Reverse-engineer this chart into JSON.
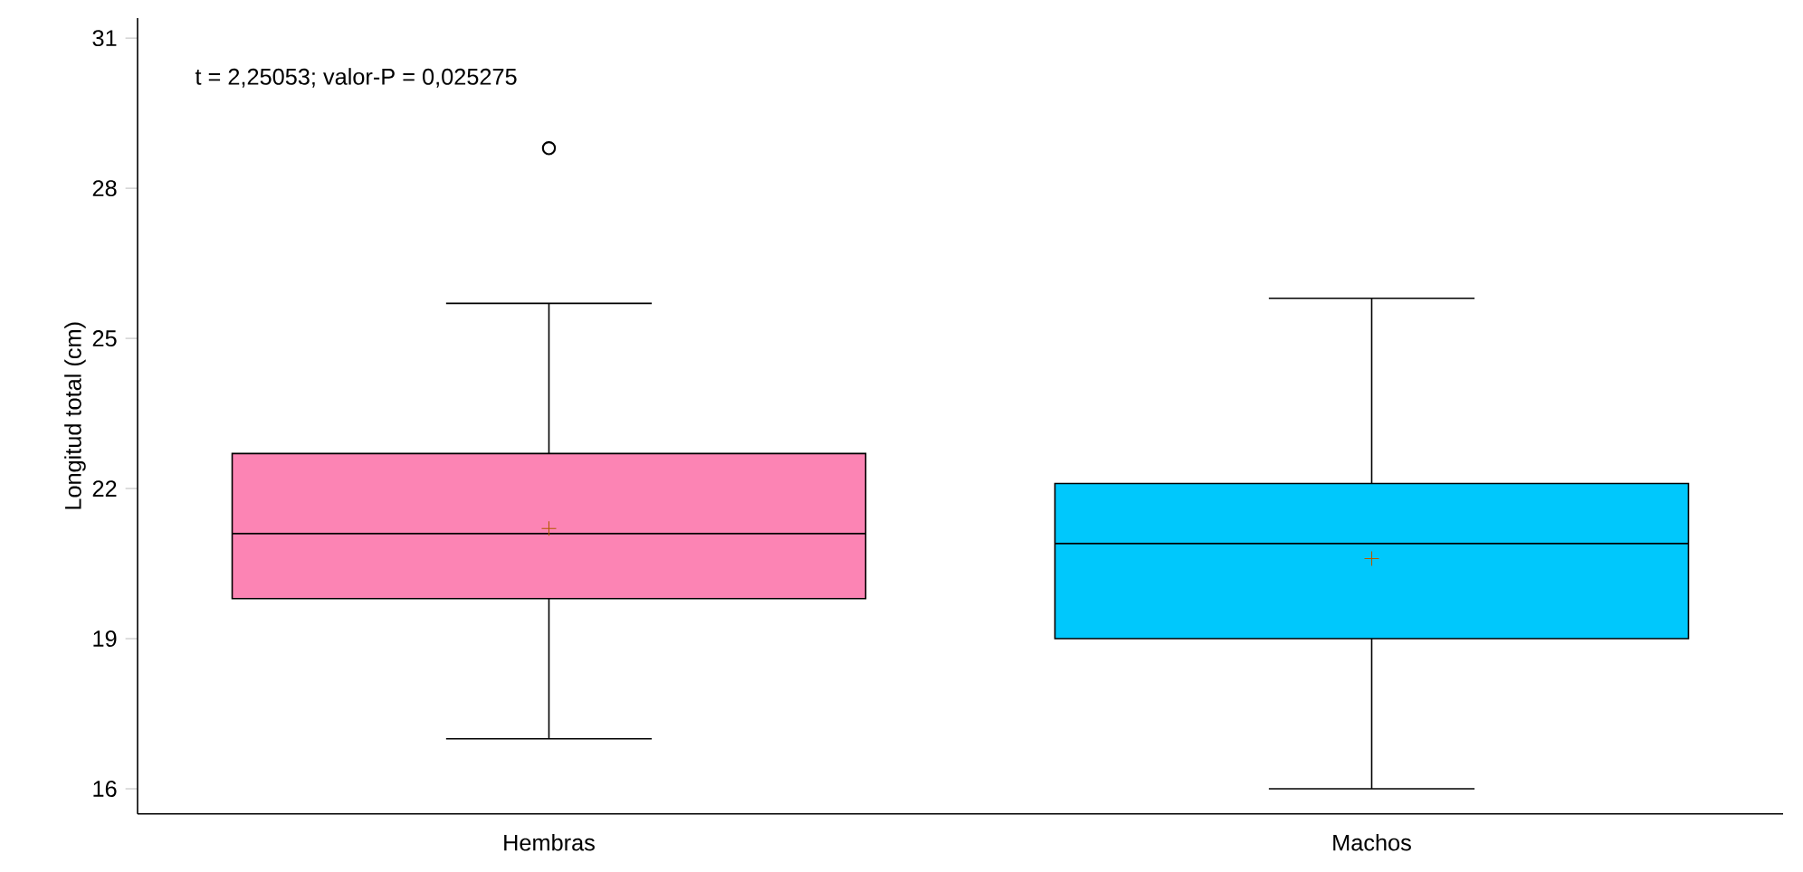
{
  "chart_data": {
    "type": "box",
    "ylabel": "Longitud total (cm)",
    "annotations": [
      "t = 2,25053;  valor-P = 0,025275"
    ],
    "categories": [
      "Hembras",
      "Machos"
    ],
    "colors": [
      "#fc84b4",
      "#00c8fc"
    ],
    "boxes": [
      {
        "low": 17.0,
        "q1": 19.8,
        "median": 21.1,
        "q3": 22.7,
        "high": 25.7,
        "mean": 21.2,
        "outliers": [
          28.8
        ]
      },
      {
        "low": 16.0,
        "q1": 19.0,
        "median": 20.9,
        "q3": 22.1,
        "high": 25.8,
        "mean": 20.6
      }
    ],
    "ylim": [
      15.5,
      31.4
    ],
    "yticks": [
      16,
      19,
      22,
      25,
      28,
      31
    ]
  }
}
